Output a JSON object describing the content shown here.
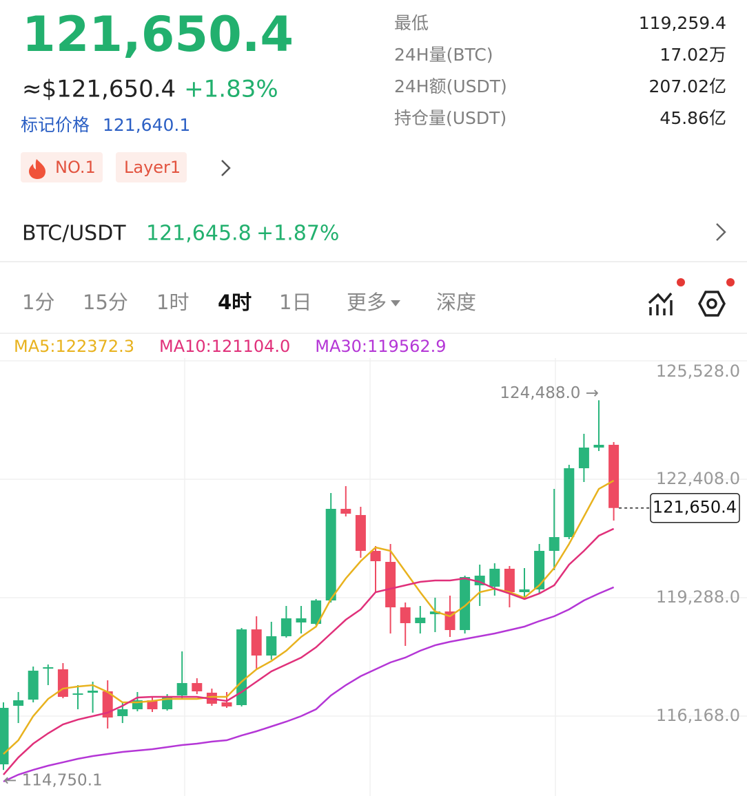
{
  "header": {
    "price": "121,650.4",
    "usd_price": "≈$121,650.4",
    "change": "+1.83%",
    "mark_label": "标记价格",
    "mark_price": "121,640.1",
    "tags": [
      "NO.1",
      "Layer1"
    ]
  },
  "stats": [
    {
      "label": "最低",
      "value": "119,259.4"
    },
    {
      "label": "24H量(BTC)",
      "value": "17.02万"
    },
    {
      "label": "24H额(USDT)",
      "value": "207.02亿"
    },
    {
      "label": "持仓量(USDT)",
      "value": "45.86亿"
    }
  ],
  "spot": {
    "pair": "BTC/USDT",
    "price": "121,645.8",
    "change": "+1.87%"
  },
  "tabs": [
    "1分",
    "15分",
    "1时",
    "4时",
    "1日",
    "更多",
    "深度"
  ],
  "active_tab": 3,
  "chart_data": {
    "type": "candlestick",
    "up_color": "#29b57c",
    "down_color": "#ee4b62",
    "grid": true,
    "open": [
      114898,
      116440,
      116603,
      117419,
      117401,
      116730,
      116785,
      116821,
      116168,
      116349,
      116585,
      116349,
      116712,
      117039,
      116785,
      116531,
      116458,
      118453,
      117764,
      118272,
      118635,
      118599,
      119215,
      121628,
      121465,
      120521,
      120231,
      119034,
      118617,
      118853,
      118925,
      118435,
      119614,
      119578,
      120050,
      119433,
      119506,
      120521,
      120884,
      122698,
      123242,
      123315
    ],
    "high": [
      116531,
      116803,
      117474,
      117528,
      117565,
      116984,
      117075,
      117111,
      116531,
      116803,
      116676,
      116748,
      117873,
      117166,
      116893,
      116803,
      118490,
      118798,
      118653,
      119070,
      119070,
      119252,
      122045,
      122227,
      121682,
      120648,
      120703,
      119161,
      119070,
      119288,
      119342,
      119868,
      120159,
      120195,
      120122,
      120068,
      120703,
      122154,
      122789,
      123605,
      124488,
      123388
    ],
    "low": [
      114750.1,
      115986,
      116531,
      116984,
      116639,
      116349,
      116259,
      115841,
      115986,
      116295,
      116277,
      116313,
      116621,
      116748,
      116440,
      116386,
      116422,
      117401,
      117655,
      118236,
      118345,
      118562,
      119161,
      121428,
      120340,
      119433,
      118345,
      118018,
      118345,
      118381,
      118254,
      118345,
      119070,
      119342,
      119034,
      119252,
      119397,
      120014,
      120830,
      122335,
      123152,
      121320
    ],
    "close": [
      116386,
      116585,
      117365,
      117456,
      116676,
      116766,
      116839,
      116132,
      116349,
      116585,
      116349,
      116676,
      117039,
      116821,
      116494,
      116422,
      118453,
      117764,
      118272,
      118744,
      118744,
      119215,
      121628,
      121501,
      120521,
      120249,
      119034,
      118617,
      118762,
      118925,
      118435,
      119832,
      119868,
      120050,
      119433,
      119506,
      120521,
      120884,
      122698,
      123242,
      123315,
      121650.4
    ],
    "ma": [
      {
        "label": "MA5:122372.3",
        "color": "#e8b21e",
        "values": [
          115170,
          115533,
          116168,
          116621,
          116893,
          116948,
          116984,
          116803,
          116531,
          116531,
          116567,
          116621,
          116621,
          116621,
          116676,
          116676,
          117075,
          117401,
          117619,
          117891,
          118254,
          118526,
          119252,
          119796,
          120249,
          120612,
          120521,
          119977,
          119433,
          118925,
          118798,
          119070,
          119433,
          119524,
          119433,
          119288,
          119614,
          120068,
          120703,
          121428,
          122154,
          122372.3
        ]
      },
      {
        "label": "MA10:121104.0",
        "color": "#e0307a",
        "values": [
          114626,
          115079,
          115442,
          115714,
          115950,
          116077,
          116168,
          116259,
          116440,
          116658,
          116676,
          116676,
          116676,
          116676,
          116621,
          116567,
          116803,
          117075,
          117347,
          117528,
          117710,
          117982,
          118345,
          118707,
          118980,
          119433,
          119524,
          119614,
          119705,
          119741,
          119741,
          119796,
          119705,
          119524,
          119397,
          119252,
          119397,
          119614,
          120159,
          120521,
          120921,
          121104
        ]
      },
      {
        "label": "MA30:119562.9",
        "color": "#b436d6",
        "values": [
          114445,
          114626,
          114753,
          114862,
          114952,
          115043,
          115116,
          115170,
          115225,
          115261,
          115297,
          115352,
          115406,
          115442,
          115497,
          115533,
          115660,
          115769,
          115896,
          116023,
          116168,
          116349,
          116712,
          116984,
          117220,
          117401,
          117583,
          117710,
          117891,
          118036,
          118127,
          118200,
          118272,
          118345,
          118435,
          118526,
          118671,
          118798,
          118980,
          119215,
          119397,
          119562.9
        ]
      }
    ],
    "ylim": [
      114064,
      125600
    ],
    "yticks": [
      {
        "value": 125528,
        "label": "125,528.0"
      },
      {
        "value": 122408,
        "label": "122,408.0"
      },
      {
        "value": 119288,
        "label": "119,288.0"
      },
      {
        "value": 116168,
        "label": "116,168.0"
      }
    ],
    "last_price": {
      "value": 121650.4,
      "label": "121,650.4"
    },
    "high_label": "124,488.0 →",
    "low_label": "← 114,750.1"
  }
}
